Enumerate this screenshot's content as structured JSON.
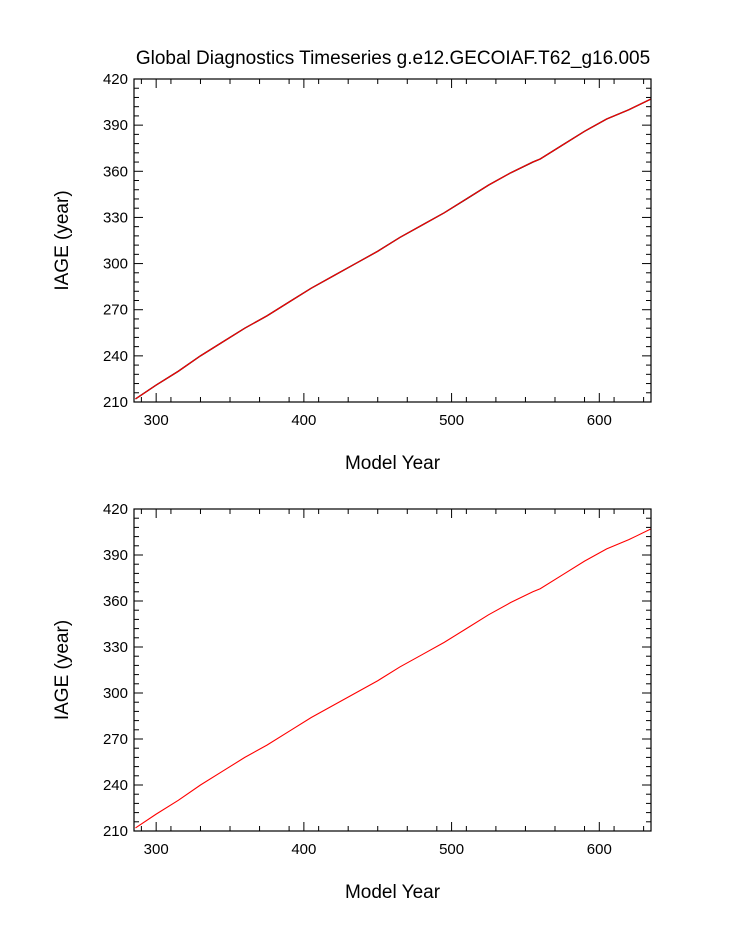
{
  "figure": {
    "title": "Global Diagnostics Timeseries g.e12.GECOIAF.T62_g16.005"
  },
  "chart_data": [
    {
      "type": "line",
      "title": "Global Diagnostics Timeseries g.e12.GECOIAF.T62_g16.005",
      "xlabel": "Model Year",
      "ylabel": "IAGE (year)",
      "xlim": [
        285,
        635
      ],
      "ylim": [
        210,
        420
      ],
      "xticks": [
        300,
        400,
        500,
        600
      ],
      "yticks": [
        210,
        240,
        270,
        300,
        330,
        360,
        390,
        420
      ],
      "grid": false,
      "colors": {
        "series": [
          "#000000",
          "#ff0000"
        ]
      },
      "series": [
        {
          "x": [
            286,
            300,
            315,
            330,
            345,
            360,
            375,
            390,
            405,
            420,
            435,
            450,
            465,
            480,
            495,
            510,
            525,
            540,
            555,
            560,
            575,
            590,
            605,
            620,
            635
          ],
          "y": [
            212,
            221,
            230,
            240,
            249,
            258,
            266,
            275,
            284,
            292,
            300,
            308,
            317,
            325,
            333,
            342,
            351,
            359,
            366,
            368,
            377,
            386,
            394,
            400,
            407
          ]
        },
        {
          "x": [
            286,
            300,
            315,
            330,
            345,
            360,
            375,
            390,
            405,
            420,
            435,
            450,
            465,
            480,
            495,
            510,
            525,
            540,
            555,
            560,
            575,
            590,
            605,
            620,
            635
          ],
          "y": [
            212,
            221,
            230,
            240,
            249,
            258,
            266,
            275,
            284,
            292,
            300,
            308,
            317,
            325,
            333,
            342,
            351,
            359,
            366,
            368,
            377,
            386,
            394,
            400,
            407
          ]
        }
      ]
    },
    {
      "type": "line",
      "xlabel": "Model Year",
      "ylabel": "IAGE (year)",
      "xlim": [
        285,
        635
      ],
      "ylim": [
        210,
        420
      ],
      "xticks": [
        300,
        400,
        500,
        600
      ],
      "yticks": [
        210,
        240,
        270,
        300,
        330,
        360,
        390,
        420
      ],
      "grid": false,
      "colors": {
        "series": [
          "#ff0000"
        ]
      },
      "series": [
        {
          "x": [
            286,
            300,
            315,
            330,
            345,
            360,
            375,
            390,
            405,
            420,
            435,
            450,
            465,
            480,
            495,
            510,
            525,
            540,
            555,
            560,
            575,
            590,
            605,
            620,
            635
          ],
          "y": [
            212,
            221,
            230,
            240,
            249,
            258,
            266,
            275,
            284,
            292,
            300,
            308,
            317,
            325,
            333,
            342,
            351,
            359,
            366,
            368,
            377,
            386,
            394,
            400,
            407
          ]
        }
      ]
    }
  ]
}
